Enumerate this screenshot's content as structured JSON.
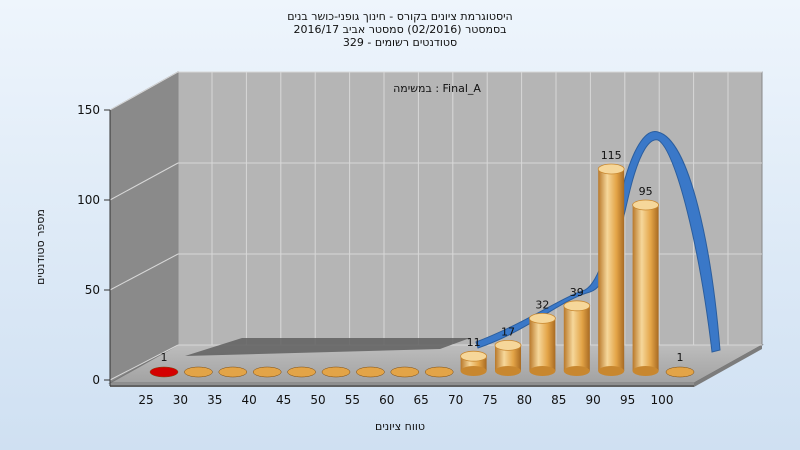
{
  "chart_data": {
    "type": "bar",
    "title_lines": [
      "היסטוגרמת ציונים בקורס - חינוך גופני-כושר בנים",
      "בסמסטר  (02/2016)  סמסטר אביב 2016/17",
      "סטודנטים רשומים - 329"
    ],
    "annotation": "במשימה : Final_A",
    "xlabel": "טווח ציונים",
    "ylabel": "מספר סטודנטים",
    "categories": [
      "25",
      "30",
      "35",
      "40",
      "45",
      "50",
      "55",
      "60",
      "65",
      "70",
      "75",
      "80",
      "85",
      "90",
      "95",
      "100"
    ],
    "values": [
      1,
      0,
      0,
      0,
      0,
      0,
      0,
      0,
      0,
      11,
      17,
      32,
      39,
      115,
      95,
      1
    ],
    "ylim": [
      0,
      150
    ],
    "yticks": [
      0,
      50,
      100,
      150
    ],
    "grid": true,
    "colors": {
      "bar": "#e3a447",
      "bar_light": "#f6d79a",
      "bar_dark": "#b8782a",
      "first_bar": "#d40000",
      "curve": "#3a78c8",
      "back_wall": "#b4b4b4",
      "side_wall": "#8c8c8c",
      "floor": "#a8a8a8"
    }
  }
}
